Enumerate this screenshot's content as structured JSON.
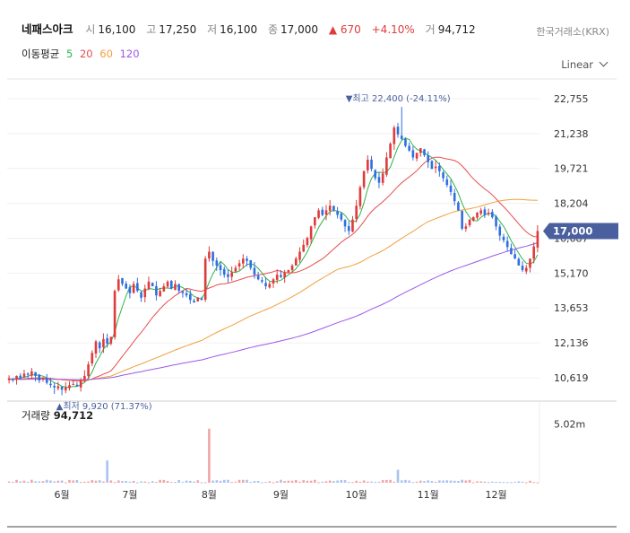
{
  "header": {
    "name": "네패스아크",
    "open_label": "시",
    "open": "16,100",
    "high_label": "고",
    "high": "17,250",
    "low_label": "저",
    "low": "16,100",
    "close_label": "종",
    "close": "17,000",
    "change": "▲ 670",
    "change_pct": "+4.10%",
    "volume_label": "거",
    "volume": "94,712"
  },
  "exchange": "한국거래소(KRX)",
  "ma": {
    "label": "이동평균",
    "p5": "5",
    "p20": "20",
    "p60": "60",
    "p120": "120",
    "colors": {
      "p5": "#2fb34b",
      "p20": "#e84c4c",
      "p60": "#f0a040",
      "p120": "#9b59e8"
    }
  },
  "scale_button": "Linear",
  "volume_panel": {
    "label": "거래량",
    "value": "94,712",
    "tick": "5.02m"
  },
  "colors": {
    "up": "#e03b3b",
    "down": "#2f6fe0",
    "badge": "#4a5f9e"
  },
  "chart_data": {
    "type": "candlestick",
    "y_ticks": [
      "22,755",
      "21,238",
      "19,721",
      "18,204",
      "16,687",
      "15,170",
      "13,653",
      "12,136",
      "10,619"
    ],
    "y_tick_values": [
      22755,
      21238,
      19721,
      18204,
      16687,
      15170,
      13653,
      12136,
      10619
    ],
    "ylim": [
      9800,
      23300
    ],
    "x_labels": [
      "6월",
      "7월",
      "8월",
      "9월",
      "10월",
      "11월",
      "12월"
    ],
    "x_label_index": [
      14,
      32,
      53,
      72,
      92,
      111,
      129
    ],
    "current_price": "17,000",
    "high_annotation": {
      "text": "▼최고 22,400 (-24.11%)",
      "value": 22400,
      "index": 104
    },
    "low_annotation": {
      "text": "▲최저 9,920 (71.37%)",
      "value": 9920,
      "index": 12
    },
    "close": [
      10600,
      10550,
      10700,
      10600,
      10800,
      10750,
      10900,
      10700,
      10500,
      10600,
      10400,
      10300,
      10200,
      10250,
      10100,
      10200,
      10300,
      10350,
      10250,
      10500,
      10700,
      11200,
      11700,
      12200,
      11900,
      12300,
      12100,
      12400,
      14400,
      14900,
      14700,
      14500,
      14300,
      14700,
      14400,
      14100,
      14500,
      14800,
      14600,
      14200,
      14400,
      14600,
      14800,
      14500,
      14700,
      14400,
      14300,
      14200,
      14000,
      13900,
      14100,
      14000,
      15800,
      16100,
      15700,
      15500,
      15300,
      15100,
      15000,
      15200,
      15400,
      15600,
      15800,
      15700,
      15400,
      15100,
      14900,
      14800,
      14600,
      14700,
      14900,
      15100,
      15000,
      15200,
      15300,
      15500,
      15800,
      16100,
      16400,
      16700,
      17200,
      17600,
      17900,
      17700,
      17900,
      18100,
      17900,
      17700,
      17500,
      17200,
      17000,
      17500,
      18100,
      18900,
      19600,
      20100,
      19700,
      19300,
      19100,
      19500,
      20200,
      20800,
      21500,
      21200,
      21000,
      20700,
      20500,
      20200,
      20400,
      20600,
      20300,
      20000,
      19700,
      19800,
      19600,
      19300,
      19000,
      18700,
      18300,
      17900,
      17100,
      17200,
      17500,
      17600,
      17800,
      17900,
      17700,
      17800,
      17600,
      17200,
      16800,
      16600,
      16300,
      16000,
      15800,
      15500,
      15300,
      15400,
      15800,
      16330,
      17000
    ],
    "volume_spikes": [
      {
        "index": 26,
        "volume": 1900000
      },
      {
        "index": 53,
        "volume": 4600000
      },
      {
        "index": 103,
        "volume": 1100000
      }
    ],
    "ma_periods": [
      5,
      20,
      60,
      120
    ]
  }
}
